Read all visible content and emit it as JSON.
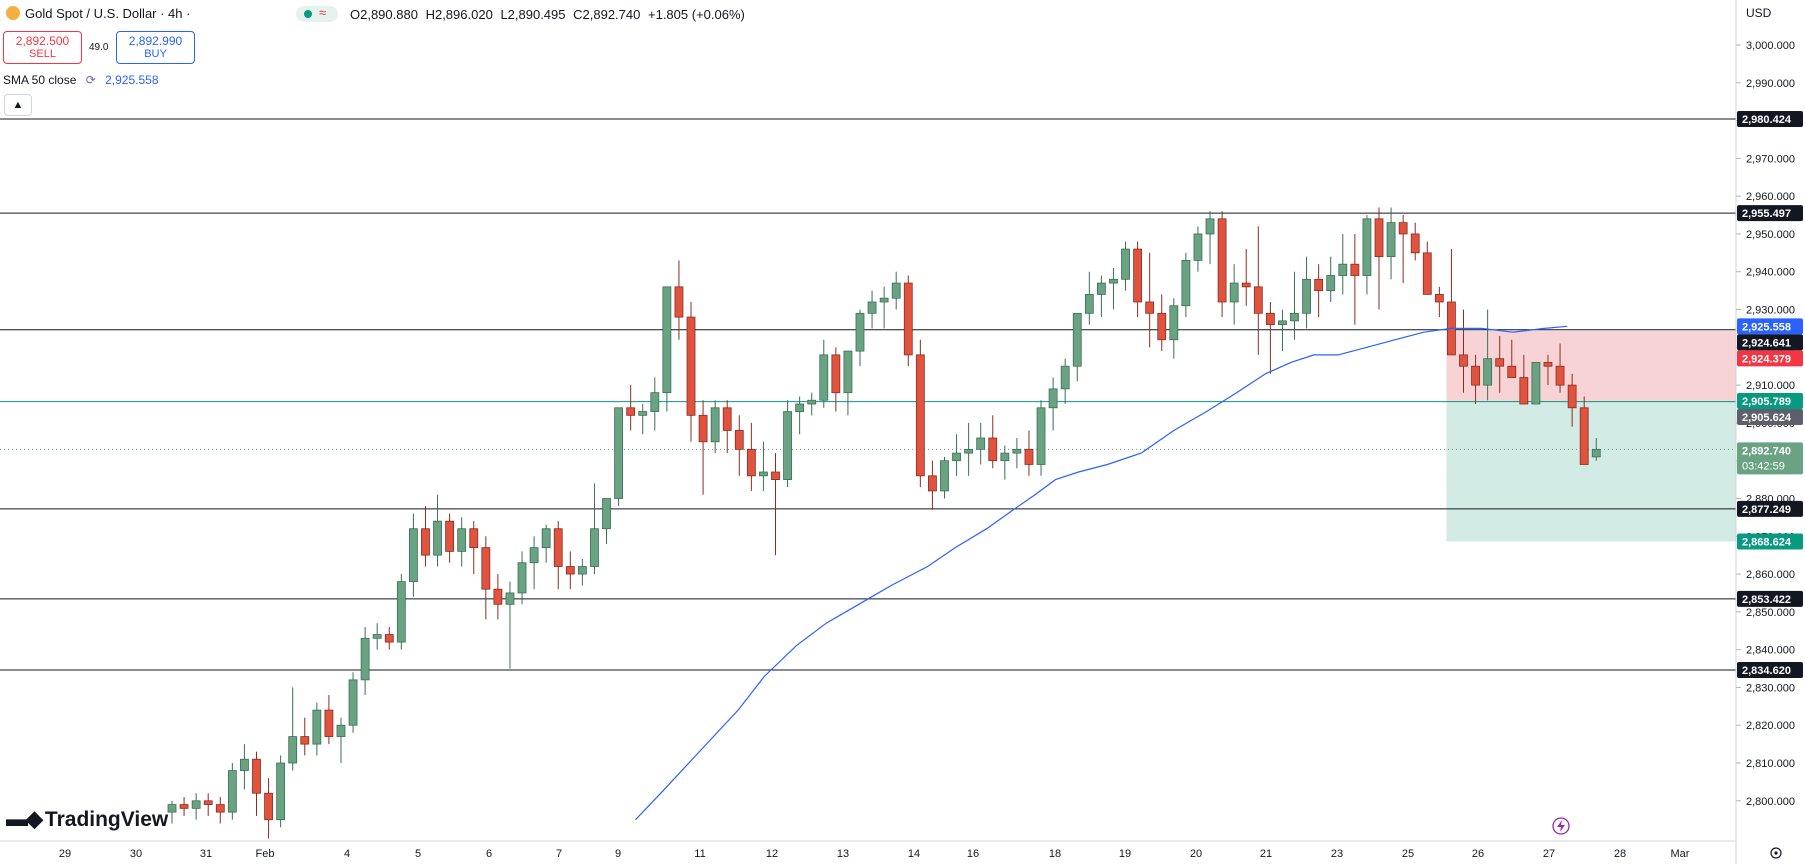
{
  "header": {
    "symbol": "Gold Spot / U.S. Dollar · 4h ·",
    "ohlc": {
      "o": "O2,890.880",
      "h": "H2,896.020",
      "l": "L2,890.495",
      "c": "C2,892.740",
      "chg": "+1.805 (+0.06%)"
    },
    "sell": {
      "value": "2,892.500",
      "label": "SELL"
    },
    "spread": "49.0",
    "buy": {
      "value": "2,892.990",
      "label": "BUY"
    },
    "indicator": {
      "name": "SMA 50 close",
      "value": "2,925.558"
    },
    "collapse_icon": "chevron-up-icon"
  },
  "currency": "USD",
  "branding": "TradingView",
  "colors": {
    "up": "#6aa384",
    "down": "#e0533f",
    "sma": "#2962ff",
    "sell": "#f23645",
    "buy": "#2962ff",
    "stop_zone": "#f8d3d6",
    "target_zone": "#d3ebe5"
  },
  "chart_data": {
    "type": "candlestick",
    "ylim": [
      2795,
      3005
    ],
    "y_ticks": [
      2800,
      2810,
      2820,
      2830,
      2840,
      2850,
      2860,
      2870,
      2880,
      2890,
      2900,
      2910,
      2920,
      2930,
      2940,
      2950,
      2960,
      2970,
      2980,
      2990,
      3000
    ],
    "x_ticks": [
      "29",
      "30",
      "31",
      "Feb",
      "4",
      "5",
      "6",
      "7",
      "9",
      "11",
      "12",
      "13",
      "14",
      "16",
      "18",
      "19",
      "20",
      "21",
      "23",
      "25",
      "26",
      "27",
      "28",
      "Mar"
    ],
    "horizontal_levels": [
      {
        "value": 2980.424,
        "label": "2,980.424"
      },
      {
        "value": 2955.497,
        "label": "2,955.497"
      },
      {
        "value": 2924.641,
        "label": "2,924.641"
      },
      {
        "value": 2905.624,
        "label": "2,905.624"
      },
      {
        "value": 2877.249,
        "label": "2,877.249"
      },
      {
        "value": 2853.422,
        "label": "2,853.422"
      },
      {
        "value": 2834.62,
        "label": "2,834.620"
      }
    ],
    "price_labels": [
      {
        "value": 2925.558,
        "label": "2,925.558",
        "bg": "#2962ff",
        "fg": "#ffffff"
      },
      {
        "value": 2924.379,
        "label": "2,924.379",
        "bg": "#f23645",
        "fg": "#ffffff"
      },
      {
        "value": 2905.789,
        "label": "2,905.789",
        "bg": "#089981",
        "fg": "#ffffff"
      },
      {
        "value": 2892.74,
        "label": "2,892.740",
        "sub": "03:42:59",
        "bg": "#6aa384",
        "fg": "#ffffff"
      },
      {
        "value": 2868.624,
        "label": "2,868.624",
        "bg": "#089981",
        "fg": "#ffffff"
      }
    ],
    "position": {
      "entry": 2905.624,
      "stop": 2924.379,
      "target": 2868.624,
      "start_index": 106
    },
    "candles": [
      [
        2797,
        2800,
        2794,
        2799
      ],
      [
        2799,
        2801,
        2796,
        2798
      ],
      [
        2798,
        2802,
        2795,
        2800
      ],
      [
        2800,
        2802,
        2796,
        2799
      ],
      [
        2799,
        2801,
        2794,
        2797
      ],
      [
        2797,
        2810,
        2795,
        2808
      ],
      [
        2808,
        2815,
        2803,
        2811
      ],
      [
        2811,
        2813,
        2796,
        2802
      ],
      [
        2802,
        2806,
        2790,
        2795
      ],
      [
        2795,
        2812,
        2793,
        2810
      ],
      [
        2810,
        2830,
        2808,
        2817
      ],
      [
        2817,
        2822,
        2812,
        2815
      ],
      [
        2815,
        2826,
        2812,
        2824
      ],
      [
        2824,
        2828,
        2815,
        2817
      ],
      [
        2817,
        2822,
        2810,
        2820
      ],
      [
        2820,
        2834,
        2818,
        2832
      ],
      [
        2832,
        2846,
        2828,
        2843
      ],
      [
        2843,
        2847,
        2840,
        2844
      ],
      [
        2844,
        2846,
        2840,
        2842
      ],
      [
        2842,
        2860,
        2840,
        2858
      ],
      [
        2858,
        2876,
        2854,
        2872
      ],
      [
        2872,
        2878,
        2862,
        2865
      ],
      [
        2865,
        2881,
        2862,
        2874
      ],
      [
        2874,
        2876,
        2863,
        2866
      ],
      [
        2866,
        2875,
        2862,
        2872
      ],
      [
        2872,
        2874,
        2860,
        2867
      ],
      [
        2867,
        2870,
        2848,
        2856
      ],
      [
        2856,
        2860,
        2848,
        2852
      ],
      [
        2852,
        2858,
        2835,
        2855
      ],
      [
        2855,
        2866,
        2852,
        2863
      ],
      [
        2863,
        2870,
        2856,
        2867
      ],
      [
        2867,
        2873,
        2863,
        2872
      ],
      [
        2872,
        2874,
        2856,
        2862
      ],
      [
        2862,
        2866,
        2856,
        2860
      ],
      [
        2860,
        2864,
        2857,
        2862
      ],
      [
        2862,
        2884,
        2860,
        2872
      ],
      [
        2872,
        2880,
        2868,
        2880
      ],
      [
        2880,
        2904,
        2878,
        2904
      ],
      [
        2904,
        2910,
        2898,
        2902
      ],
      [
        2902,
        2905,
        2897,
        2903
      ],
      [
        2903,
        2912,
        2898,
        2908
      ],
      [
        2908,
        2936,
        2903,
        2936
      ],
      [
        2936,
        2943,
        2922,
        2928
      ],
      [
        2928,
        2932,
        2895,
        2902
      ],
      [
        2902,
        2906,
        2881,
        2895
      ],
      [
        2895,
        2906,
        2892,
        2904
      ],
      [
        2904,
        2906,
        2892,
        2898
      ],
      [
        2898,
        2902,
        2886,
        2893
      ],
      [
        2893,
        2900,
        2882,
        2886
      ],
      [
        2886,
        2895,
        2882,
        2887
      ],
      [
        2887,
        2892,
        2865,
        2885
      ],
      [
        2885,
        2906,
        2883,
        2903
      ],
      [
        2903,
        2907,
        2897,
        2905
      ],
      [
        2905,
        2908,
        2902,
        2906
      ],
      [
        2906,
        2922,
        2904,
        2918
      ],
      [
        2918,
        2920,
        2903,
        2908
      ],
      [
        2908,
        2917,
        2902,
        2919
      ],
      [
        2919,
        2930,
        2915,
        2929
      ],
      [
        2929,
        2935,
        2925,
        2932
      ],
      [
        2932,
        2936,
        2925,
        2933
      ],
      [
        2933,
        2940,
        2930,
        2937
      ],
      [
        2937,
        2939,
        2915,
        2918
      ],
      [
        2918,
        2922,
        2883,
        2886
      ],
      [
        2886,
        2890,
        2877,
        2882
      ],
      [
        2882,
        2891,
        2880,
        2890
      ],
      [
        2890,
        2897,
        2886,
        2892
      ],
      [
        2892,
        2900,
        2886,
        2893
      ],
      [
        2893,
        2900,
        2889,
        2896
      ],
      [
        2896,
        2902,
        2888,
        2890
      ],
      [
        2890,
        2894,
        2885,
        2892
      ],
      [
        2892,
        2896,
        2888,
        2893
      ],
      [
        2893,
        2898,
        2886,
        2889
      ],
      [
        2889,
        2906,
        2886,
        2904
      ],
      [
        2904,
        2912,
        2898,
        2909
      ],
      [
        2909,
        2917,
        2905,
        2915
      ],
      [
        2915,
        2927,
        2911,
        2929
      ],
      [
        2929,
        2940,
        2926,
        2934
      ],
      [
        2934,
        2939,
        2928,
        2937
      ],
      [
        2937,
        2941,
        2930,
        2938
      ],
      [
        2938,
        2948,
        2935,
        2946
      ],
      [
        2946,
        2948,
        2928,
        2932
      ],
      [
        2932,
        2945,
        2920,
        2929
      ],
      [
        2929,
        2934,
        2919,
        2922
      ],
      [
        2922,
        2933,
        2917,
        2931
      ],
      [
        2931,
        2945,
        2928,
        2943
      ],
      [
        2943,
        2952,
        2940,
        2950
      ],
      [
        2950,
        2956,
        2942,
        2954
      ],
      [
        2954,
        2956,
        2928,
        2932
      ],
      [
        2932,
        2942,
        2926,
        2937
      ],
      [
        2937,
        2946,
        2931,
        2936
      ],
      [
        2936,
        2952,
        2918,
        2929
      ],
      [
        2929,
        2932,
        2913,
        2926
      ],
      [
        2926,
        2930,
        2919,
        2927
      ],
      [
        2927,
        2940,
        2922,
        2929
      ],
      [
        2929,
        2944,
        2925,
        2938
      ],
      [
        2938,
        2942,
        2928,
        2935
      ],
      [
        2935,
        2944,
        2932,
        2939
      ],
      [
        2939,
        2950,
        2934,
        2942
      ],
      [
        2942,
        2950,
        2926,
        2939
      ],
      [
        2939,
        2955,
        2934,
        2954
      ],
      [
        2954,
        2957,
        2930,
        2944
      ],
      [
        2944,
        2957,
        2938,
        2953
      ],
      [
        2953,
        2955,
        2937,
        2950
      ],
      [
        2950,
        2953,
        2943,
        2945
      ],
      [
        2945,
        2948,
        2935,
        2934
      ],
      [
        2934,
        2936,
        2928,
        2932
      ],
      [
        2932,
        2946,
        2918,
        2918
      ],
      [
        2918,
        2930,
        2908,
        2915
      ],
      [
        2915,
        2918,
        2905,
        2910
      ],
      [
        2910,
        2930,
        2906,
        2917
      ],
      [
        2917,
        2923,
        2908,
        2915
      ],
      [
        2915,
        2922,
        2912,
        2912
      ],
      [
        2912,
        2918,
        2905,
        2905
      ],
      [
        2905,
        2915,
        2905,
        2916
      ],
      [
        2916,
        2918,
        2910,
        2915
      ],
      [
        2915,
        2921,
        2908,
        2910
      ],
      [
        2910,
        2913,
        2899,
        2904
      ],
      [
        2904,
        2907,
        2891,
        2889
      ],
      [
        2891,
        2896,
        2890,
        2893
      ]
    ],
    "sma50": [
      [
        38.4,
        2795
      ],
      [
        40.5,
        2802
      ],
      [
        43.4,
        2812
      ],
      [
        46.9,
        2824
      ],
      [
        49.1,
        2833
      ],
      [
        51.7,
        2841
      ],
      [
        54.2,
        2847
      ],
      [
        56.9,
        2852
      ],
      [
        59.6,
        2857
      ],
      [
        62.6,
        2862
      ],
      [
        64.9,
        2867
      ],
      [
        67.5,
        2872
      ],
      [
        69.7,
        2877
      ],
      [
        71.5,
        2881
      ],
      [
        73.2,
        2885
      ],
      [
        75.1,
        2887
      ],
      [
        77.5,
        2889
      ],
      [
        80.3,
        2892
      ],
      [
        83,
        2898
      ],
      [
        85.7,
        2903
      ],
      [
        88.2,
        2908
      ],
      [
        90.6,
        2913
      ],
      [
        92.7,
        2916
      ],
      [
        94.6,
        2918
      ],
      [
        96.6,
        2918
      ],
      [
        99,
        2920
      ],
      [
        101.3,
        2922
      ],
      [
        103.7,
        2924
      ],
      [
        106,
        2925
      ],
      [
        108.5,
        2925
      ],
      [
        111.1,
        2924
      ],
      [
        113.7,
        2925
      ],
      [
        115.6,
        2925.558
      ]
    ]
  }
}
